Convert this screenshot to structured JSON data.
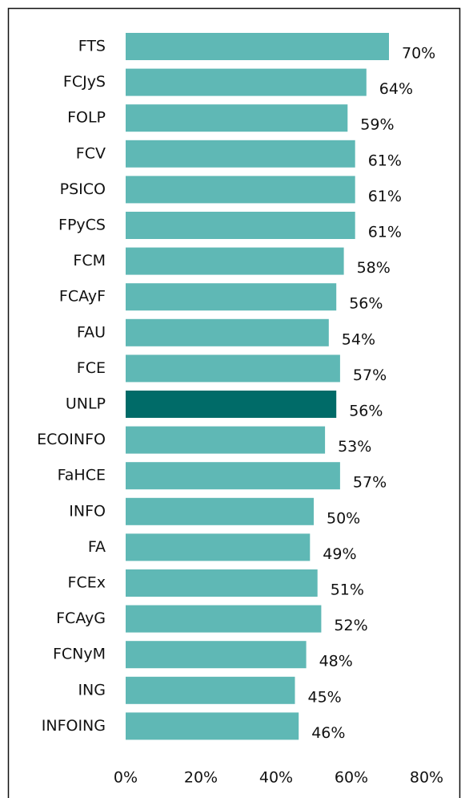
{
  "chart_data": {
    "type": "hbar",
    "categories": [
      "FTS",
      "FCJyS",
      "FOLP",
      "FCV",
      "PSICO",
      "FPyCS",
      "FCM",
      "FCAyF",
      "FAU",
      "FCE",
      "UNLP",
      "ECOINFO",
      "FaHCE",
      "INFO",
      "FA",
      "FCEx",
      "FCAyG",
      "FCNyM",
      "ING",
      "INFOING"
    ],
    "values": [
      70,
      64,
      59,
      61,
      61,
      61,
      58,
      56,
      54,
      57,
      56,
      53,
      57,
      50,
      49,
      51,
      52,
      48,
      45,
      46
    ],
    "value_labels": [
      "70%",
      "64%",
      "59%",
      "61%",
      "61%",
      "61%",
      "58%",
      "56%",
      "54%",
      "57%",
      "56%",
      "53%",
      "57%",
      "50%",
      "49%",
      "51%",
      "52%",
      "48%",
      "45%",
      "46%"
    ],
    "colors": [
      "#5fb8b5",
      "#5fb8b5",
      "#5fb8b5",
      "#5fb8b5",
      "#5fb8b5",
      "#5fb8b5",
      "#5fb8b5",
      "#5fb8b5",
      "#5fb8b5",
      "#5fb8b5",
      "#006b68",
      "#5fb8b5",
      "#5fb8b5",
      "#5fb8b5",
      "#5fb8b5",
      "#5fb8b5",
      "#5fb8b5",
      "#5fb8b5",
      "#5fb8b5",
      "#5fb8b5"
    ],
    "xlim": [
      0,
      80
    ],
    "xticks": [
      {
        "value": 0,
        "label": "0%"
      },
      {
        "value": 20,
        "label": "20%"
      },
      {
        "value": 40,
        "label": "40%"
      },
      {
        "value": 60,
        "label": "60%"
      },
      {
        "value": 80,
        "label": "80%"
      }
    ]
  }
}
